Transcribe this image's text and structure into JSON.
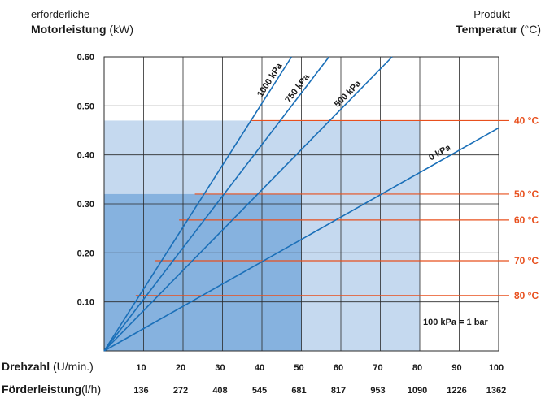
{
  "left_axis": {
    "line1": "erforderliche",
    "line2_bold": "Motorleistung",
    "line2_unit": " (kW)"
  },
  "right_axis": {
    "line1": "Produkt",
    "line2_bold": "Temperatur",
    "line2_unit": " (°C)"
  },
  "chart_data": {
    "type": "line",
    "x_label_bold": "Drehzahl",
    "x_label_unit": " (U/min.)",
    "x2_label_bold": "Förderleistung",
    "x2_label_unit": "(l/h)",
    "x_ticks": [
      "10",
      "20",
      "30",
      "40",
      "50",
      "60",
      "70",
      "80",
      "90",
      "100"
    ],
    "x2_ticks": [
      "136",
      "272",
      "408",
      "545",
      "681",
      "817",
      "953",
      "1090",
      "1226",
      "1362"
    ],
    "xlim": [
      0,
      100
    ],
    "y_ticks": [
      "0.60",
      "0.50",
      "0.40",
      "0.30",
      "0.20",
      "0.10"
    ],
    "ylim": [
      0,
      0.6
    ],
    "grid": true,
    "series": [
      {
        "name": "1000 kPa",
        "x": [
          0,
          47.5
        ],
        "y": [
          0,
          0.6
        ]
      },
      {
        "name": "750 kPa",
        "x": [
          0,
          57
        ],
        "y": [
          0,
          0.6
        ]
      },
      {
        "name": "500 kPa",
        "x": [
          0,
          73
        ],
        "y": [
          0,
          0.6
        ]
      },
      {
        "name": "0 kPa",
        "x": [
          0,
          100
        ],
        "y": [
          0,
          0.455
        ]
      }
    ],
    "regions": [
      {
        "x": [
          0,
          80
        ],
        "y": [
          0,
          0.47
        ]
      },
      {
        "x": [
          0,
          50
        ],
        "y": [
          0,
          0.32
        ]
      }
    ],
    "temperature_lines": [
      {
        "label": "40 °C",
        "y": 0.47,
        "x_start": 37
      },
      {
        "label": "50 °C",
        "y": 0.32,
        "x_start": 23
      },
      {
        "label": "60 °C",
        "y": 0.267,
        "x_start": 19
      },
      {
        "label": "70 °C",
        "y": 0.184,
        "x_start": 13
      },
      {
        "label": "80 °C",
        "y": 0.113,
        "x_start": 8
      }
    ],
    "note": "100 kPa = 1 bar"
  },
  "colors": {
    "region_light": "#c5d9ef",
    "region_dark": "#86b2df",
    "grid": "#2a2a2a",
    "series": "#1a6fb8",
    "temperature": "#e8501e"
  }
}
